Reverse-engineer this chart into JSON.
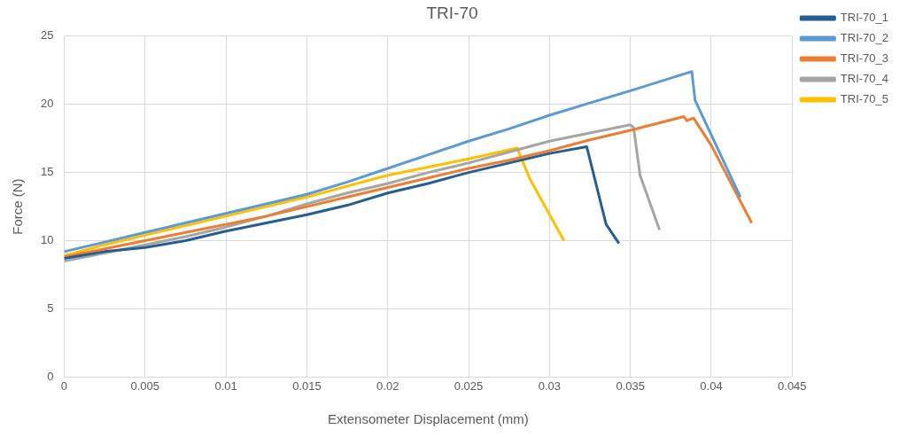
{
  "chart_data": {
    "type": "line",
    "title": "TRI-70",
    "xlabel": "Extensometer Displacement (mm)",
    "ylabel": "Force (N)",
    "xlim": [
      0,
      0.045
    ],
    "xticks": [
      0,
      0.005,
      0.01,
      0.015,
      0.02,
      0.025,
      0.03,
      0.035,
      0.04,
      0.045
    ],
    "ylim": [
      0,
      25
    ],
    "yticks": [
      0,
      5,
      10,
      15,
      20,
      25
    ],
    "grid": true,
    "legend": "top right",
    "marker": "none",
    "line_style": "solid",
    "series": [
      {
        "name": "TRI-70_1",
        "color": "#255e91",
        "x": [
          0,
          0.0025,
          0.005,
          0.0075,
          0.01,
          0.0125,
          0.015,
          0.0175,
          0.02,
          0.0225,
          0.025,
          0.0275,
          0.03,
          0.0323,
          0.0335,
          0.0343
        ],
        "values": [
          8.7,
          9.2,
          9.5,
          10.0,
          10.7,
          11.3,
          11.9,
          12.6,
          13.5,
          14.2,
          15.0,
          15.7,
          16.4,
          16.9,
          11.2,
          9.8
        ]
      },
      {
        "name": "TRI-70_2",
        "color": "#5b9bd5",
        "x": [
          0,
          0.0025,
          0.005,
          0.0075,
          0.01,
          0.0125,
          0.015,
          0.0175,
          0.02,
          0.0225,
          0.025,
          0.0275,
          0.03,
          0.0325,
          0.035,
          0.0385,
          0.0388,
          0.039,
          0.0418
        ],
        "values": [
          9.2,
          9.9,
          10.6,
          11.3,
          12.0,
          12.7,
          13.4,
          14.3,
          15.3,
          16.3,
          17.3,
          18.2,
          19.2,
          20.1,
          21.0,
          22.3,
          22.4,
          20.3,
          13.2
        ]
      },
      {
        "name": "TRI-70_3",
        "color": "#ed7d31",
        "x": [
          0,
          0.0025,
          0.005,
          0.0075,
          0.01,
          0.0125,
          0.015,
          0.0175,
          0.02,
          0.0225,
          0.025,
          0.0275,
          0.03,
          0.0325,
          0.035,
          0.0383,
          0.0385,
          0.0389,
          0.04,
          0.0425
        ],
        "values": [
          8.8,
          9.4,
          10.0,
          10.6,
          11.2,
          11.8,
          12.5,
          13.2,
          13.9,
          14.6,
          15.3,
          15.9,
          16.6,
          17.4,
          18.1,
          19.1,
          18.8,
          19.0,
          17.0,
          11.3
        ]
      },
      {
        "name": "TRI-70_4",
        "color": "#a5a5a5",
        "x": [
          0,
          0.0025,
          0.005,
          0.0075,
          0.01,
          0.0125,
          0.015,
          0.0175,
          0.02,
          0.0225,
          0.025,
          0.0275,
          0.03,
          0.0325,
          0.035,
          0.0352,
          0.0356,
          0.0368
        ],
        "values": [
          8.5,
          9.1,
          9.7,
          10.3,
          11.0,
          11.8,
          12.7,
          13.5,
          14.2,
          15.0,
          15.7,
          16.5,
          17.3,
          17.9,
          18.5,
          18.3,
          14.8,
          10.8
        ]
      },
      {
        "name": "TRI-70_5",
        "color": "#ffc000",
        "x": [
          0,
          0.0025,
          0.005,
          0.0075,
          0.01,
          0.0125,
          0.015,
          0.0175,
          0.02,
          0.0225,
          0.025,
          0.028,
          0.0288,
          0.0309
        ],
        "values": [
          8.9,
          9.7,
          10.4,
          11.1,
          11.8,
          12.5,
          13.2,
          14.0,
          14.8,
          15.4,
          16.0,
          16.8,
          14.5,
          10.0
        ]
      }
    ]
  }
}
